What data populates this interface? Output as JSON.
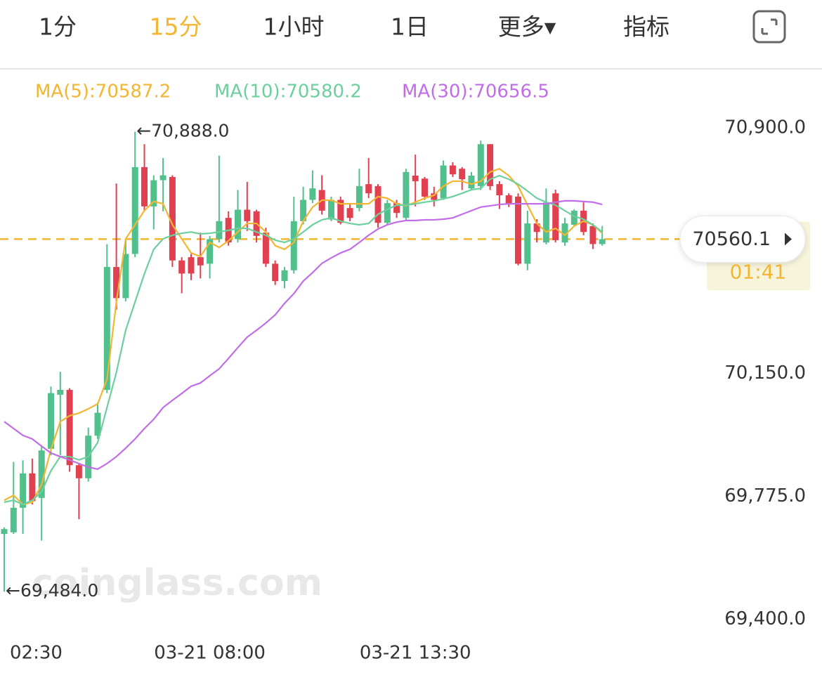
{
  "tabs": {
    "items": [
      "1分",
      "15分",
      "1小时",
      "1日",
      "更多▾",
      "指标"
    ],
    "active": 1
  },
  "chart_data": {
    "type": "candlestick",
    "categories": [
      "02:30",
      null,
      null,
      null,
      null,
      null,
      null,
      null,
      null,
      null,
      null,
      null,
      null,
      null,
      null,
      null,
      null,
      null,
      null,
      null,
      null,
      null,
      "03-21 08:00",
      null,
      null,
      null,
      null,
      null,
      null,
      null,
      null,
      null,
      null,
      null,
      null,
      null,
      null,
      null,
      null,
      null,
      null,
      null,
      null,
      null,
      "03-21 13:30",
      null,
      null,
      null,
      null,
      null,
      null,
      null,
      null,
      null,
      null,
      null,
      null,
      null,
      null,
      null,
      null,
      null,
      null,
      null,
      null
    ],
    "open": [
      69660,
      69665,
      69740,
      69845,
      69770,
      69920,
      70085,
      70100,
      69870,
      69830,
      69960,
      70100,
      70475,
      70380,
      70515,
      70780,
      70660,
      70740,
      70750,
      70495,
      70505,
      70505,
      70485,
      70560,
      70625,
      70560,
      70650,
      70645,
      70580,
      70485,
      70432,
      70465,
      70615,
      70680,
      70710,
      70620,
      70680,
      70655,
      70655,
      70728,
      70722,
      70610,
      70670,
      70625,
      70754,
      70745,
      70700,
      70685,
      70785,
      70775,
      70715,
      70722,
      70850,
      70728,
      70694,
      70690,
      70485,
      70608,
      70550,
      70700,
      70550,
      70604,
      70647,
      70600,
      70545
    ],
    "high": [
      69680,
      69880,
      69885,
      69890,
      69930,
      70110,
      70155,
      70105,
      69875,
      69985,
      70060,
      70545,
      70730,
      70560,
      70888,
      70850,
      70755,
      70808,
      70755,
      70505,
      70515,
      70580,
      70570,
      70815,
      70645,
      70710,
      70735,
      70650,
      70595,
      70495,
      70475,
      70690,
      70720,
      70770,
      70755,
      70690,
      70690,
      70670,
      70775,
      70808,
      70728,
      70680,
      70680,
      70775,
      70818,
      70750,
      70720,
      70800,
      70795,
      70780,
      70765,
      70861,
      70850,
      70737,
      70700,
      70700,
      70647,
      70621,
      70715,
      70711,
      70625,
      70651,
      70672,
      70608,
      70600
    ],
    "low": [
      69484,
      69660,
      69660,
      69750,
      69640,
      69900,
      69900,
      69850,
      69705,
      69820,
      69950,
      70090,
      70345,
      70370,
      70505,
      70645,
      70590,
      70645,
      70475,
      70395,
      70435,
      70440,
      70440,
      70550,
      70540,
      70550,
      70585,
      70550,
      70475,
      70420,
      70410,
      70455,
      70605,
      70670,
      70635,
      70615,
      70605,
      70615,
      70645,
      70685,
      70595,
      70605,
      70625,
      70615,
      70660,
      70680,
      70660,
      70680,
      70750,
      70710,
      70710,
      70710,
      70710,
      70652,
      70658,
      70480,
      70465,
      70550,
      70544,
      70550,
      70540,
      70600,
      70572,
      70530,
      70540
    ],
    "close": [
      69675,
      69740,
      69845,
      69760,
      69915,
      70090,
      70100,
      69870,
      69830,
      69960,
      70030,
      70475,
      70380,
      70515,
      70780,
      70660,
      70740,
      70755,
      70495,
      70455,
      70455,
      70480,
      70560,
      70615,
      70550,
      70650,
      70615,
      70570,
      70485,
      70432,
      70465,
      70615,
      70680,
      70715,
      70647,
      70680,
      70610,
      70625,
      70722,
      70700,
      70610,
      70670,
      70640,
      70765,
      70737,
      70690,
      70680,
      70785,
      70758,
      70743,
      70754,
      70850,
      70722,
      70694,
      70668,
      70485,
      70608,
      70582,
      70672,
      70557,
      70608,
      70647,
      70582,
      70545,
      70560.1
    ],
    "up_color": "#52c08c",
    "down_color": "#e0404f",
    "series": [
      {
        "name": "MA(5):70587.2",
        "color": "#f2b632",
        "values": [
          69763,
          69778,
          69750,
          69757,
          69810,
          69918,
          70003,
          70021,
          70029,
          70042,
          70057,
          70132,
          70368,
          70561,
          70604,
          70647,
          70675,
          70668,
          70604,
          70561,
          70518,
          70507,
          70550,
          70535,
          70555,
          70582,
          70608,
          70608,
          70582,
          70540,
          70529,
          70550,
          70615,
          70658,
          70679,
          70679,
          70668,
          70668,
          70668,
          70668,
          70690,
          70685,
          70668,
          70662,
          70673,
          70685,
          70694,
          70722,
          70737,
          70737,
          70728,
          70737,
          70765,
          70775,
          70754,
          70722,
          70664,
          70608,
          70582,
          70593,
          70572,
          70600,
          70615,
          70604,
          70578
        ]
      },
      {
        "name": "MA(10):70580.2",
        "color": "#6ccf9d",
        "values": [
          69757,
          69763,
          69750,
          69763,
          69789,
          69853,
          69896,
          69896,
          69886,
          69896,
          69939,
          70046,
          70153,
          70282,
          70368,
          70454,
          70529,
          70561,
          70572,
          70578,
          70582,
          70576,
          70578,
          70582,
          70587,
          70593,
          70593,
          70582,
          70572,
          70557,
          70550,
          70561,
          70582,
          70604,
          70619,
          70625,
          70615,
          70608,
          70604,
          70608,
          70636,
          70651,
          70664,
          70664,
          70668,
          70673,
          70677,
          70683,
          70690,
          70700,
          70711,
          70715,
          70743,
          70754,
          70743,
          70728,
          70707,
          70685,
          70673,
          70664,
          70647,
          70630,
          70621,
          70604,
          70582
        ]
      },
      {
        "name": "MA(30):70656.5",
        "color": "#c16de8",
        "values": [
          70003,
          69982,
          69961,
          69950,
          69928,
          69907,
          69896,
          69886,
          69875,
          69864,
          69858,
          69875,
          69896,
          69922,
          69950,
          69982,
          70010,
          70046,
          70068,
          70089,
          70111,
          70121,
          70143,
          70164,
          70196,
          70229,
          70261,
          70282,
          70304,
          70329,
          70364,
          70394,
          70432,
          70458,
          70486,
          70503,
          70518,
          70529,
          70550,
          70572,
          70591,
          70604,
          70612,
          70617,
          70617,
          70619,
          70619,
          70621,
          70625,
          70636,
          70647,
          70658,
          70662,
          70666,
          70668,
          70668,
          70668,
          70668,
          70668,
          70673,
          70677,
          70677,
          70675,
          70673,
          70666
        ]
      }
    ],
    "ylim": [
      69360,
      71080
    ],
    "yticks": [
      {
        "value": 70900,
        "label": "70,900.0"
      },
      {
        "value": 70150,
        "label": "70,150.0"
      },
      {
        "value": 69775,
        "label": "69,775.0"
      },
      {
        "value": 69400,
        "label": "69,400.0"
      }
    ],
    "high_marker": {
      "value": 70888,
      "label": "←70,888.0"
    },
    "low_marker": {
      "value": 69484,
      "label": "←69,484.0"
    },
    "current_price": 70560.1,
    "countdown": "01:41",
    "watermark": "coinglass.com"
  }
}
